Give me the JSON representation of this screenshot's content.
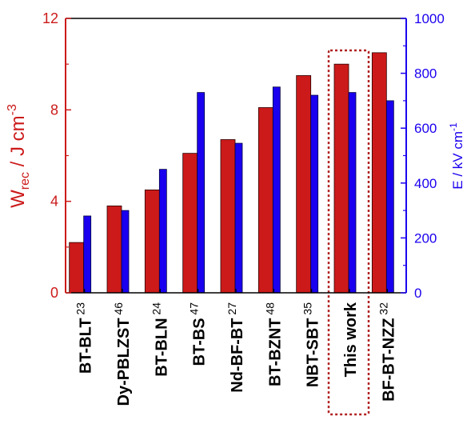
{
  "chart_data": {
    "type": "bar",
    "categories": [
      {
        "name": "BT-BLT",
        "ref": "23"
      },
      {
        "name": "Dy-PBLZST",
        "ref": "46"
      },
      {
        "name": "BT-BLN",
        "ref": "24"
      },
      {
        "name": "BT-BS",
        "ref": "47"
      },
      {
        "name": "Nd-BF-BT",
        "ref": "27"
      },
      {
        "name": "BT-BZNT",
        "ref": "48"
      },
      {
        "name": "NBT-SBT",
        "ref": "35"
      },
      {
        "name": "This work",
        "ref": ""
      },
      {
        "name": "BF-BT-NZZ",
        "ref": "32"
      }
    ],
    "series": [
      {
        "axis": "left",
        "color": "#cc1a1a",
        "values": [
          2.2,
          3.8,
          4.5,
          6.1,
          6.7,
          8.1,
          9.5,
          10.0,
          10.5
        ]
      },
      {
        "axis": "right",
        "color": "#1a00ee",
        "values": [
          280,
          300,
          450,
          730,
          545,
          750,
          720,
          730,
          700
        ]
      }
    ],
    "left_axis": {
      "label_main": "W",
      "label_sub": "rec",
      "label_rest": " / J cm",
      "label_sup": "-3",
      "ylim": [
        0,
        12
      ],
      "ticks": [
        "0",
        "4",
        "8",
        "12"
      ],
      "color": "#cc1a1a"
    },
    "right_axis": {
      "label_main": "E / kV cm",
      "label_sup": "-1",
      "ylim": [
        0,
        1000
      ],
      "ticks": [
        "0",
        "200",
        "400",
        "600",
        "800",
        "1000"
      ],
      "color": "#1a00ee"
    },
    "highlight_category": "This work",
    "highlight_color": "#b22222",
    "grid": false
  }
}
